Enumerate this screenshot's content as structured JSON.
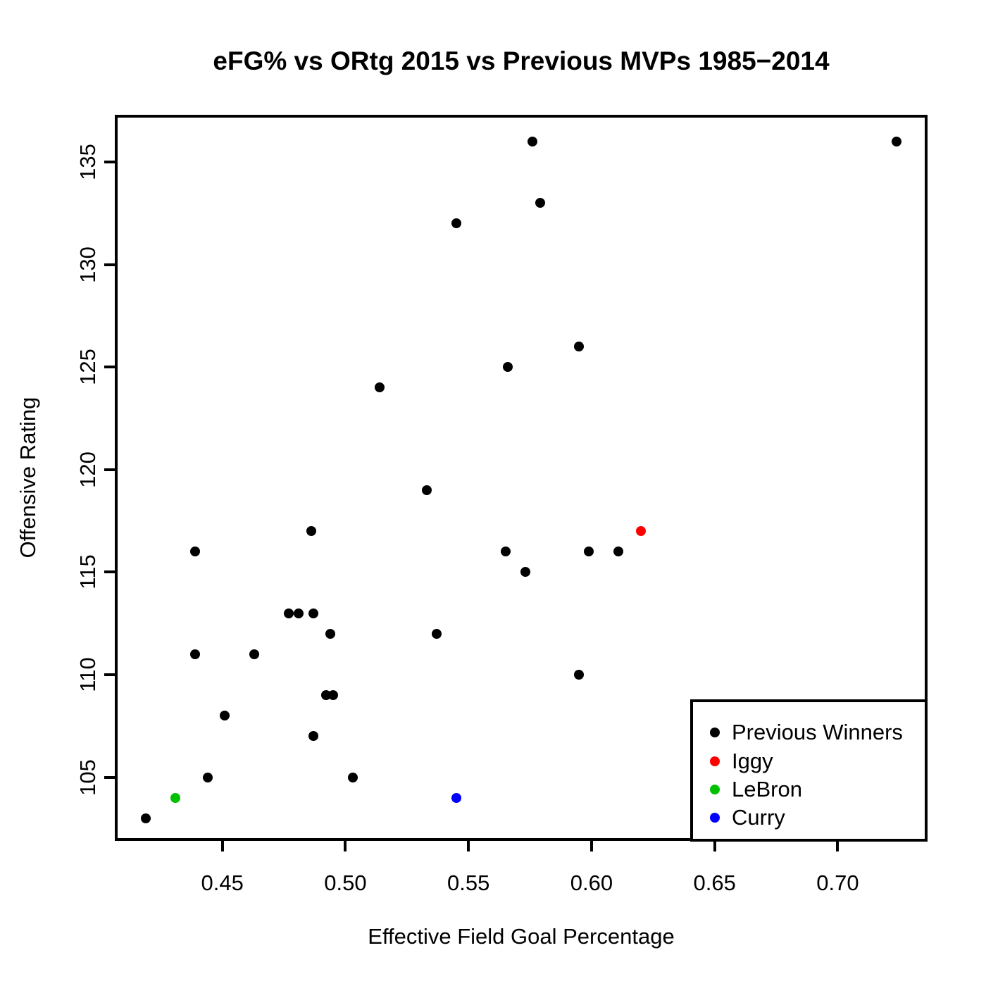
{
  "chart_data": {
    "type": "scatter",
    "title": "eFG% vs ORtg 2015 vs Previous MVPs 1985−2014",
    "xlabel": "Effective Field Goal Percentage",
    "ylabel": "Offensive Rating",
    "xlim": [
      0.4063,
      0.7365
    ],
    "ylim": [
      101.9,
      137.3
    ],
    "grid": false,
    "legend_position": "bottomright",
    "x_ticks": {
      "values": [
        0.45,
        0.5,
        0.55,
        0.6,
        0.65,
        0.7
      ],
      "labels": [
        "0.45",
        "0.50",
        "0.55",
        "0.60",
        "0.65",
        "0.70"
      ]
    },
    "y_ticks": {
      "values": [
        105,
        110,
        115,
        120,
        125,
        130,
        135
      ],
      "labels": [
        "105",
        "110",
        "115",
        "120",
        "125",
        "130",
        "135"
      ]
    },
    "series": [
      {
        "name": "Previous Winners",
        "color": "#000000",
        "points": [
          [
            0.576,
            136
          ],
          [
            0.724,
            136
          ],
          [
            0.579,
            133
          ],
          [
            0.545,
            132
          ],
          [
            0.595,
            126
          ],
          [
            0.566,
            125
          ],
          [
            0.514,
            124
          ],
          [
            0.533,
            119
          ],
          [
            0.486,
            117
          ],
          [
            0.439,
            116
          ],
          [
            0.565,
            116
          ],
          [
            0.599,
            116
          ],
          [
            0.611,
            116
          ],
          [
            0.573,
            115
          ],
          [
            0.477,
            113
          ],
          [
            0.481,
            113
          ],
          [
            0.487,
            113
          ],
          [
            0.494,
            112
          ],
          [
            0.537,
            112
          ],
          [
            0.439,
            111
          ],
          [
            0.463,
            111
          ],
          [
            0.595,
            110
          ],
          [
            0.492,
            109
          ],
          [
            0.495,
            109
          ],
          [
            0.451,
            108
          ],
          [
            0.487,
            107
          ],
          [
            0.444,
            105
          ],
          [
            0.503,
            105
          ],
          [
            0.419,
            103
          ]
        ]
      },
      {
        "name": "Iggy",
        "color": "#FF0000",
        "points": [
          [
            0.62,
            117
          ]
        ]
      },
      {
        "name": "LeBron",
        "color": "#00C000",
        "points": [
          [
            0.431,
            104
          ]
        ]
      },
      {
        "name": "Curry",
        "color": "#0000FF",
        "points": [
          [
            0.545,
            104
          ]
        ]
      }
    ]
  }
}
